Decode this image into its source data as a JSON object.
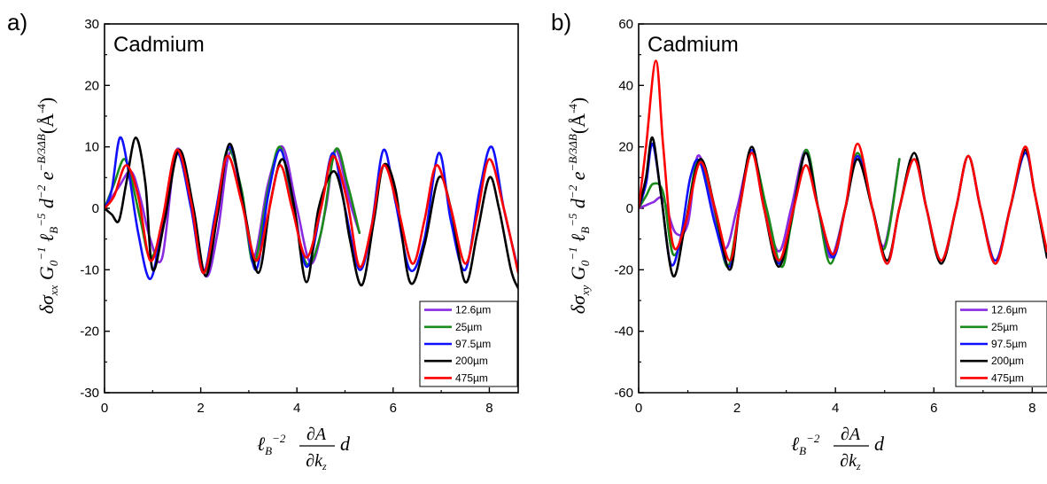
{
  "chart_data": [
    {
      "type": "line",
      "panel_label": "a)",
      "title": "Cadmium",
      "xlim": [
        0,
        8.6
      ],
      "ylim": [
        -30,
        30
      ],
      "xticks": [
        0,
        2,
        4,
        6,
        8
      ],
      "yticks": [
        -30,
        -20,
        -10,
        0,
        10,
        20,
        30
      ],
      "legend_position": "bottom-right",
      "series": [
        {
          "name": "12.6µm",
          "color": "#8a2be2",
          "x": [
            0,
            0.3,
            0.55,
            0.75,
            0.95,
            1.2,
            1.5,
            1.8,
            2.1,
            2.35,
            2.6,
            2.85,
            3.1,
            3.4,
            3.7,
            4.0,
            4.3,
            4.6,
            4.8,
            5.1,
            5.3
          ],
          "y": [
            0,
            3.5,
            6,
            1.5,
            -5,
            -8,
            9.5,
            1,
            -11,
            -4,
            9,
            2,
            -8,
            4,
            10,
            0,
            -9,
            0,
            9.5,
            1,
            -4
          ]
        },
        {
          "name": "25µm",
          "color": "#1a8a1a",
          "x": [
            0,
            0.2,
            0.4,
            0.55,
            0.75,
            0.95,
            1.2,
            1.5,
            1.8,
            2.05,
            2.3,
            2.55,
            2.85,
            3.1,
            3.4,
            3.65,
            3.9,
            4.2,
            4.5,
            4.8,
            5.05,
            5.3
          ],
          "y": [
            0,
            4,
            8,
            5,
            -2,
            -8,
            -3,
            9.5,
            1,
            -10.5,
            -3,
            9.5,
            3,
            -9,
            3,
            10,
            1,
            -9,
            -4,
            9.5,
            4,
            -4
          ]
        },
        {
          "name": "97.5µm",
          "color": "#1010ff",
          "x": [
            0,
            0.15,
            0.32,
            0.5,
            0.7,
            0.95,
            1.2,
            1.5,
            1.8,
            2.05,
            2.3,
            2.6,
            2.9,
            3.15,
            3.4,
            3.65,
            3.9,
            4.2,
            4.5,
            4.75,
            5.0,
            5.3,
            5.55,
            5.8,
            6.05,
            6.35,
            6.65,
            6.95,
            7.2,
            7.5,
            7.8,
            8.05,
            8.3,
            8.6
          ],
          "y": [
            0,
            3,
            11.5,
            6,
            -4,
            -11.5,
            -3,
            9,
            0,
            -10.5,
            -1,
            10,
            0,
            -10,
            2,
            9.5,
            2,
            -9.5,
            0,
            9,
            0,
            -10,
            -3,
            9.5,
            1,
            -10,
            -5,
            9,
            -2,
            -10,
            3,
            10,
            0,
            -10
          ]
        },
        {
          "name": "200µm",
          "color": "#000000",
          "x": [
            0,
            0.15,
            0.3,
            0.45,
            0.65,
            0.85,
            1.0,
            1.25,
            1.55,
            1.85,
            2.1,
            2.35,
            2.6,
            2.9,
            3.2,
            3.45,
            3.7,
            3.95,
            4.2,
            4.45,
            4.75,
            4.95,
            5.1,
            5.35,
            5.6,
            5.8,
            6.05,
            6.35,
            6.65,
            6.95,
            7.2,
            7.5,
            7.75,
            8.0,
            8.2,
            8.45,
            8.6
          ],
          "y": [
            0,
            -1,
            -2,
            4,
            11.5,
            4,
            -10,
            -2,
            9.5,
            0,
            -11,
            -1,
            10.5,
            0,
            -10.5,
            1,
            8,
            0,
            -12,
            0,
            6,
            2,
            -5,
            -12.5,
            -2,
            7,
            3,
            -12,
            -6,
            5,
            0,
            -12,
            -4,
            5,
            0,
            -10,
            -13
          ]
        },
        {
          "name": "475µm",
          "color": "#ff0000",
          "x": [
            0,
            0.2,
            0.45,
            0.7,
            0.95,
            1.2,
            1.5,
            1.8,
            2.05,
            2.3,
            2.55,
            2.85,
            3.15,
            3.4,
            3.65,
            3.9,
            4.2,
            4.5,
            4.75,
            5.05,
            5.3,
            5.55,
            5.8,
            6.1,
            6.4,
            6.65,
            6.9,
            7.2,
            7.5,
            7.75,
            8.0,
            8.3,
            8.6
          ],
          "y": [
            0,
            2,
            7,
            2,
            -8.5,
            -2,
            9.5,
            1,
            -10.5,
            -2,
            8.5,
            1,
            -8.5,
            -1,
            7,
            0,
            -8,
            0,
            8.5,
            1,
            -9.5,
            -3,
            7,
            0,
            -9,
            -2,
            7,
            0,
            -9,
            -1,
            8,
            0,
            -10.5
          ]
        }
      ]
    },
    {
      "type": "line",
      "panel_label": "b)",
      "title": "Cadmium",
      "xlim": [
        0,
        8.3
      ],
      "ylim": [
        -60,
        60
      ],
      "xticks": [
        0,
        2,
        4,
        6,
        8
      ],
      "yticks": [
        -60,
        -40,
        -20,
        0,
        20,
        40,
        60
      ],
      "legend_position": "bottom-right",
      "series": [
        {
          "name": "12.6µm",
          "color": "#8a2be2",
          "x": [
            0,
            0.15,
            0.3,
            0.5,
            0.75,
            1.0,
            1.2,
            1.45,
            1.75,
            2.0,
            2.3,
            2.55,
            2.85,
            3.1,
            3.4,
            3.65,
            3.9,
            4.2,
            4.45,
            4.75,
            5.0,
            5.3
          ],
          "y": [
            0,
            1,
            2,
            3,
            -8,
            -5,
            17,
            5,
            -13,
            0,
            18,
            0,
            -14,
            0,
            19,
            0,
            -16,
            0,
            17,
            0,
            -12,
            16
          ]
        },
        {
          "name": "25µm",
          "color": "#1a8a1a",
          "x": [
            0,
            0.15,
            0.3,
            0.5,
            0.7,
            0.95,
            1.2,
            1.5,
            1.8,
            2.05,
            2.3,
            2.6,
            2.9,
            3.1,
            3.4,
            3.65,
            3.9,
            4.2,
            4.45,
            4.75,
            5.0,
            5.3
          ],
          "y": [
            0,
            4,
            8,
            5,
            -15,
            -5,
            15,
            3,
            -19,
            0,
            18,
            0,
            -19,
            -5,
            19,
            0,
            -18,
            0,
            18,
            0,
            -13,
            16
          ]
        },
        {
          "name": "97.5µm",
          "color": "#1010ff",
          "x": [
            0,
            0.15,
            0.28,
            0.45,
            0.65,
            0.85,
            1.05,
            1.25,
            1.55,
            1.85,
            2.05,
            2.3,
            2.55,
            2.85,
            3.15,
            3.4,
            3.65,
            3.95,
            4.2,
            4.45,
            4.75,
            5.05,
            5.3,
            5.6,
            5.85,
            6.15,
            6.45,
            6.7,
            6.95,
            7.25,
            7.55,
            7.85,
            8.05,
            8.3
          ],
          "y": [
            0,
            8,
            21,
            5,
            -18,
            -10,
            10,
            15,
            -5,
            -19,
            0,
            19,
            0,
            -18,
            0,
            18,
            0,
            -16,
            0,
            17,
            0,
            -18,
            0,
            16,
            0,
            -17,
            0,
            17,
            0,
            -17,
            0,
            18,
            5,
            -16
          ]
        },
        {
          "name": "200µm",
          "color": "#000000",
          "x": [
            0,
            0.15,
            0.28,
            0.45,
            0.7,
            0.95,
            1.25,
            1.55,
            1.85,
            2.05,
            2.3,
            2.55,
            2.85,
            3.15,
            3.4,
            3.65,
            3.95,
            4.2,
            4.45,
            4.75,
            5.05,
            5.3,
            5.6,
            5.85,
            6.15,
            6.45,
            6.7,
            6.95,
            7.25,
            7.55,
            7.85,
            8.05,
            8.3
          ],
          "y": [
            0,
            10,
            23,
            5,
            -22,
            -5,
            16,
            0,
            -20,
            0,
            20,
            0,
            -19,
            0,
            18,
            0,
            -15,
            0,
            16,
            0,
            -17,
            0,
            18,
            0,
            -18,
            0,
            17,
            0,
            -18,
            0,
            19,
            5,
            -16
          ]
        },
        {
          "name": "475µm",
          "color": "#ff0000",
          "x": [
            0,
            0.15,
            0.35,
            0.5,
            0.7,
            0.95,
            1.25,
            1.55,
            1.85,
            2.05,
            2.3,
            2.55,
            2.85,
            3.15,
            3.4,
            3.65,
            3.95,
            4.2,
            4.45,
            4.75,
            5.05,
            5.3,
            5.6,
            5.85,
            6.15,
            6.45,
            6.7,
            6.95,
            7.25,
            7.55,
            7.85,
            8.05,
            8.3
          ],
          "y": [
            0,
            20,
            48,
            20,
            -12,
            -5,
            15,
            0,
            -17,
            0,
            18,
            0,
            -17,
            0,
            14,
            0,
            -15,
            0,
            21,
            0,
            -18,
            0,
            16,
            0,
            -17,
            0,
            17,
            0,
            -18,
            0,
            20,
            5,
            -14
          ]
        }
      ]
    }
  ]
}
